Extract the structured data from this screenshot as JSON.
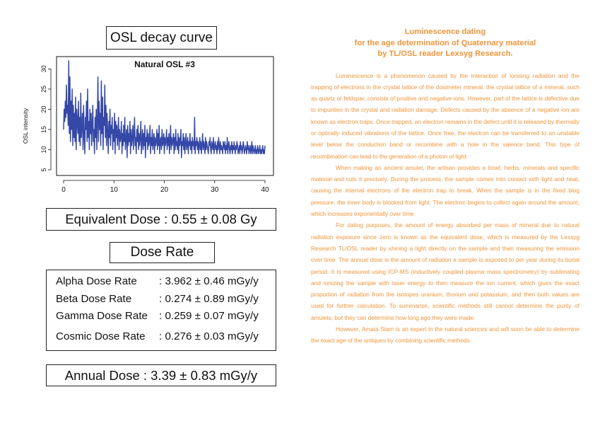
{
  "left_panel": {
    "osl_title": "OSL decay curve",
    "equivalent_dose": "Equivalent Dose : 0.55 ± 0.08 Gy",
    "dose_rate_title": "Dose Rate",
    "dose_rates": [
      {
        "label": "Alpha Dose Rate",
        "value": ": 3.962 ± 0.46  mGy/y"
      },
      {
        "label": "Beta Dose Rate",
        "value": ": 0.274 ± 0.89  mGy/y"
      },
      {
        "label": "Gamma Dose Rate",
        "value": ": 0.259 ± 0.07  mGy/y"
      },
      {
        "label": "Cosmic Dose Rate",
        "value": ": 0.276  ±  0.03  mGy/y"
      }
    ],
    "annual_dose": "Annual Dose : 3.39 ± 0.83 mGy/y"
  },
  "chart_data": {
    "type": "line",
    "title": "Natural OSL #3",
    "xlabel": "",
    "ylabel": "OSL intensity",
    "xlim": [
      0,
      40
    ],
    "ylim": [
      5,
      32
    ],
    "x_ticks": [
      "0",
      "10",
      "20",
      "30",
      "40"
    ],
    "y_ticks": [
      "5",
      "10",
      "15",
      "20",
      "25",
      "30"
    ],
    "line_color": "#3548a8",
    "series": [
      {
        "values": [
          15,
          20,
          17,
          22,
          18,
          26,
          19,
          21,
          16,
          32,
          14,
          28,
          12,
          22,
          15,
          25,
          11,
          21,
          13,
          19,
          12,
          23,
          10,
          20,
          17,
          14,
          22,
          12,
          18,
          11,
          24,
          13,
          16,
          19,
          10,
          21,
          14,
          9,
          18,
          15,
          22,
          12,
          25,
          13,
          17,
          10,
          20,
          14,
          19,
          11,
          16,
          21,
          12,
          15,
          9,
          18,
          13,
          20,
          10,
          17,
          28,
          12,
          22,
          15,
          19,
          11,
          27,
          14,
          23,
          10,
          18,
          16,
          26,
          13,
          21,
          11,
          19,
          15,
          9,
          17,
          13,
          20,
          11,
          16,
          14,
          18,
          10,
          15,
          12,
          19,
          9,
          17,
          13,
          16,
          11,
          14,
          18,
          10,
          15,
          12,
          13,
          17,
          9,
          14,
          11,
          16,
          12,
          18,
          10,
          13,
          15,
          8,
          16,
          11,
          14,
          12,
          17,
          9,
          15,
          11,
          13,
          16,
          10,
          14,
          18,
          11,
          13,
          9,
          15,
          12,
          16,
          10,
          14,
          11,
          13,
          17,
          9,
          12,
          15,
          10,
          14,
          11,
          16,
          8,
          13,
          12,
          15,
          10,
          14,
          11,
          12,
          16,
          9,
          13,
          11,
          15,
          10,
          12,
          14,
          9,
          13,
          11,
          12,
          15,
          10,
          14,
          11,
          16,
          9,
          12,
          13,
          10,
          15,
          11,
          12,
          14,
          9,
          13,
          11,
          12,
          15,
          10,
          13,
          11,
          14,
          9,
          12,
          16,
          10,
          13,
          11,
          12,
          14,
          9,
          13,
          10,
          15,
          11,
          12,
          10,
          14,
          9,
          13,
          11,
          12,
          15,
          8,
          12,
          11,
          14,
          10,
          13,
          9,
          12,
          14,
          10,
          11,
          13,
          9,
          12,
          11,
          14,
          10,
          12,
          9,
          13,
          11,
          12,
          10,
          18,
          9,
          12,
          11,
          13,
          10,
          12,
          9,
          11,
          13,
          10,
          12,
          9,
          11,
          14,
          10,
          12,
          11,
          9,
          13,
          10,
          12,
          11,
          10,
          9,
          12,
          11,
          13,
          10,
          9,
          12,
          11,
          10,
          13,
          9,
          11,
          12,
          10,
          11,
          9,
          12,
          10,
          13,
          11,
          9,
          12,
          10,
          11,
          10,
          9,
          12,
          11,
          10,
          12,
          9,
          11,
          10,
          13,
          9,
          11,
          12,
          10,
          9,
          11,
          10,
          12,
          9,
          11,
          10,
          12,
          10,
          9,
          11,
          10,
          12,
          11,
          9,
          10,
          11,
          9,
          12,
          10,
          11,
          9,
          10,
          12,
          11,
          9,
          10,
          11,
          10,
          9,
          12,
          10,
          11,
          9,
          10,
          11,
          9,
          10,
          12,
          9,
          11,
          10,
          9,
          10,
          11,
          9,
          10,
          9,
          11,
          10,
          9,
          10,
          11,
          9,
          10,
          9,
          10,
          11,
          9,
          10,
          9,
          11
        ]
      }
    ]
  },
  "article": {
    "title_lines": [
      "Luminescence dating",
      "for the age determination of Quaternary material",
      "by TL/OSL reader Lexsyg Research."
    ],
    "paragraphs": [
      "Luminescence is a phenomenon caused by the interaction of ionising radiation and the trapping of electrons in the crystal lattice of the dosimeter mineral. the crystal lattice of a mineral, such as quartz or feldspar, consists of positive and negative ions. However, part of the lattice is defective due to impurities in the crystal and radiation damage. Defects caused by the absence of a negative ion are known as electron traps. Once trapped, an electron remains in the defect until it is released by thermally or optically induced vibrations of the lattice. Once free, the electron can be transferred to an unstable level below the conduction band or recombine with a hole in the valence band. This type of recombination can lead to the generation of a photon of light.",
      "When making an ancient amulet, the artisan provides a bowl, herbs, minerals and specific material and cuts it precisely. During the process, the sample comes into contact with light and heat, causing the internal electrons of the electron trap to break. When the sample is in the fixed blog pressure, the inner body is blocked from light. The electron begins to collect again around the amount, which increases exponentially over time.",
      "For dating purposes, the amount of energy absorbed per mass of mineral due to natural radiation exposure since zero is known as the equivalent dose, which is measured by the Lexsyg Research TL/OSL reader by shining a light directly on the sample and then measuring the emission over time. The annual dose is the amount of radiation a sample is exposed to per year during its burial period. It is measured using ICP-MS (inductively coupled plasma mass spectrometry) by sublimating and ionizing the sample with laser energy to then measure the ion current, which gives the exact proportion of radiation from the isotopes uranium, thorium and potassium, and then both values are used for further calculation. To summarise, scientific methods still cannot determine the purity of amulets, but they can determine how long ago they were made.",
      "However, Amata Siam is an expert in the natural sciences and will soon be able to determine the exact age of the antiques by combining scientific methods."
    ],
    "text_color": "#f0953a"
  }
}
